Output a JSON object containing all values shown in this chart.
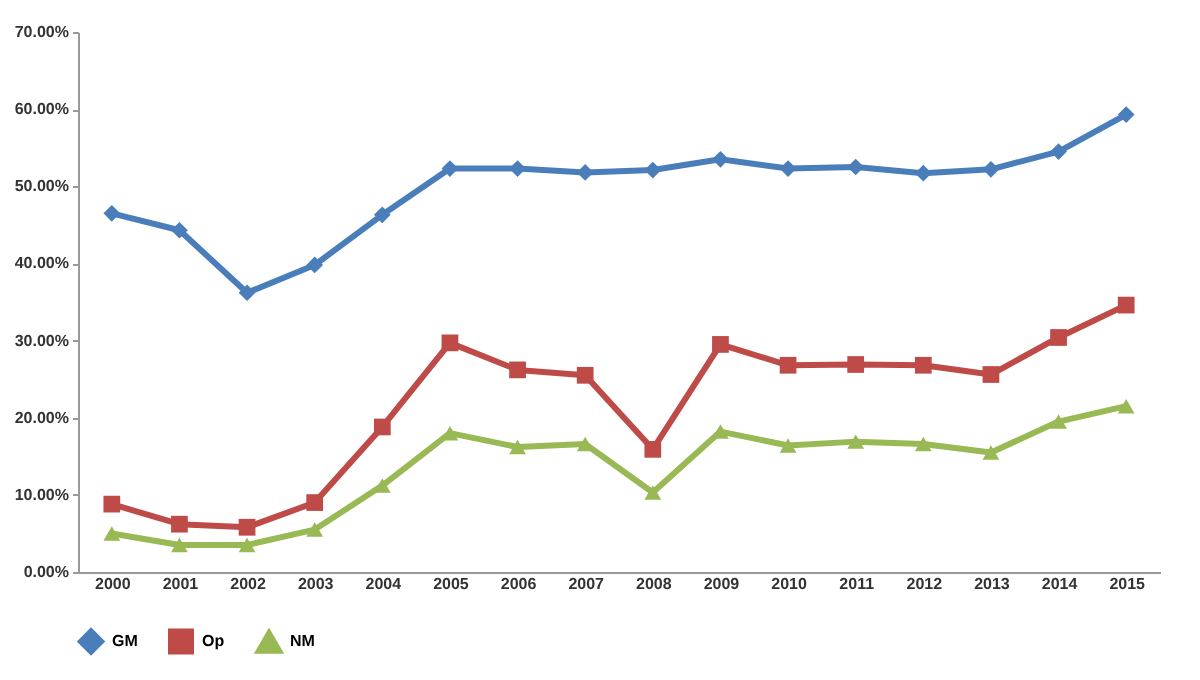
{
  "chart_data": {
    "type": "line",
    "categories": [
      "2000",
      "2001",
      "2002",
      "2003",
      "2004",
      "2005",
      "2006",
      "2007",
      "2008",
      "2009",
      "2010",
      "2011",
      "2012",
      "2013",
      "2014",
      "2015"
    ],
    "series": [
      {
        "name": "GM",
        "color": "#4a7ebb",
        "marker": "diamond",
        "values": [
          46.5,
          44.3,
          36.2,
          39.8,
          46.3,
          52.3,
          52.3,
          51.8,
          52.1,
          53.5,
          52.3,
          52.5,
          51.7,
          52.2,
          54.5,
          59.3
        ]
      },
      {
        "name": "Op",
        "color": "#be4b48",
        "marker": "square",
        "values": [
          8.8,
          6.2,
          5.8,
          9.0,
          18.8,
          29.7,
          26.2,
          25.5,
          15.9,
          29.5,
          26.8,
          26.9,
          26.8,
          25.6,
          30.4,
          34.6
        ]
      },
      {
        "name": "NM",
        "color": "#98b954",
        "marker": "triangle",
        "values": [
          5.0,
          3.5,
          3.5,
          5.5,
          11.2,
          18.0,
          16.2,
          16.6,
          10.3,
          18.2,
          16.4,
          16.9,
          16.6,
          15.5,
          19.5,
          21.5
        ]
      }
    ],
    "ylim": [
      0,
      70
    ],
    "yticks": [
      {
        "value": 0,
        "label": "0.00%"
      },
      {
        "value": 10,
        "label": "10.00%"
      },
      {
        "value": 20,
        "label": "20.00%"
      },
      {
        "value": 30,
        "label": "30.00%"
      },
      {
        "value": 40,
        "label": "40.00%"
      },
      {
        "value": 50,
        "label": "50.00%"
      },
      {
        "value": 60,
        "label": "60.00%"
      },
      {
        "value": 70,
        "label": "70.00%"
      }
    ],
    "grid": false,
    "legend": "bottom",
    "line_style": "solid"
  }
}
